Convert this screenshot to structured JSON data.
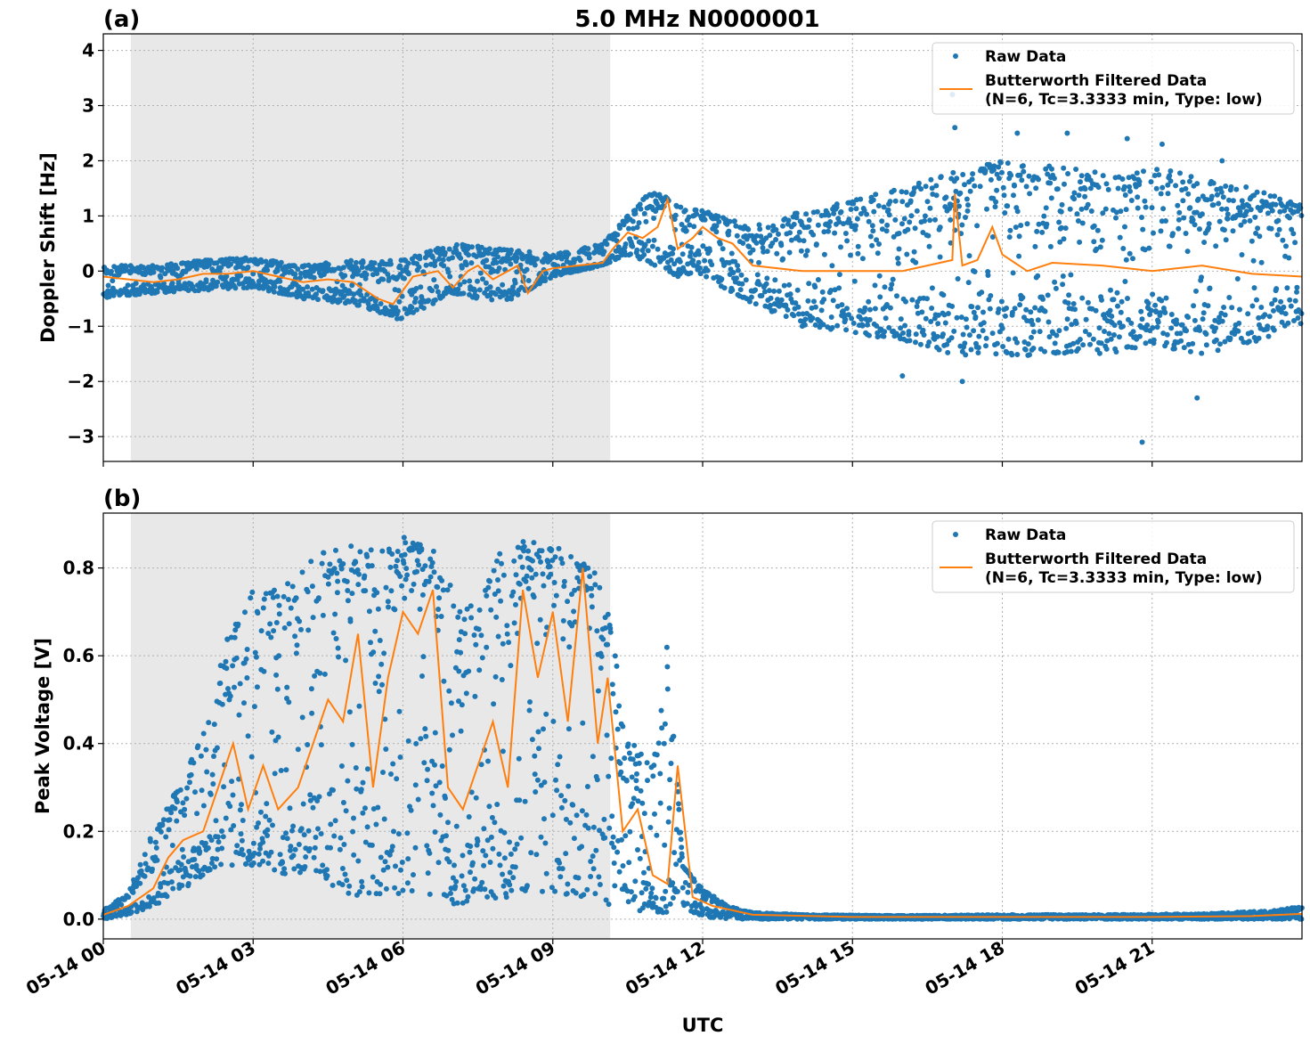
{
  "figure_title": "5.0 MHz N0000001",
  "xlabel": "UTC",
  "x_ticks": [
    "05-14 00",
    "05-14 03",
    "05-14 06",
    "05-14 09",
    "05-14 12",
    "05-14 15",
    "05-14 18",
    "05-14 21"
  ],
  "legend": {
    "raw_label": "Raw Data",
    "filtered_label_line1": "Butterworth Filtered Data",
    "filtered_label_line2": "(N=6, Tc=3.3333 min, Type: low)"
  },
  "colors": {
    "raw": "#1f77b4",
    "filtered": "#ff7f0e",
    "shade": "#e8e8e8",
    "grid": "#b0b0b0"
  },
  "chart_data": [
    {
      "type": "scatter",
      "panel_label": "(a)",
      "ylabel": "Doppler Shift [Hz]",
      "y_ticks": [
        "4",
        "3",
        "2",
        "1",
        "0",
        "−1",
        "−2",
        "−3"
      ],
      "y_tick_values": [
        4,
        3,
        2,
        1,
        0,
        -1,
        -2,
        -3
      ],
      "xlim_hours": [
        0,
        24
      ],
      "ylim": [
        -3.45,
        4.3
      ],
      "shaded_span_hours": [
        0.55,
        10.15
      ],
      "grid": true,
      "legend_position": "upper right",
      "series": [
        {
          "name": "Raw Data",
          "kind": "points",
          "envelope_hours": [
            0,
            1,
            2,
            3,
            4,
            5,
            6,
            7,
            8,
            9,
            10,
            10.5,
            11,
            11.5,
            12,
            13,
            14,
            15,
            16,
            17,
            18,
            19,
            20,
            21,
            22,
            23,
            24
          ],
          "envelope_low": [
            -0.5,
            -0.4,
            -0.35,
            -0.3,
            -0.5,
            -0.6,
            -0.9,
            -0.4,
            -0.6,
            -0.1,
            0.1,
            0.3,
            0.1,
            -0.1,
            -0.1,
            -0.6,
            -1.0,
            -1.1,
            -1.3,
            -1.5,
            -1.6,
            -1.5,
            -1.5,
            -1.4,
            -1.5,
            -1.3,
            -1.0
          ],
          "envelope_high": [
            0.1,
            0.1,
            0.2,
            0.25,
            0.1,
            0.2,
            0.2,
            0.5,
            0.4,
            0.3,
            0.5,
            1.0,
            1.5,
            1.2,
            1.1,
            0.8,
            1.1,
            1.3,
            1.5,
            1.8,
            2.0,
            1.9,
            1.8,
            1.9,
            1.7,
            1.5,
            1.2
          ],
          "outliers": [
            [
              17.0,
              3.2
            ],
            [
              17.05,
              2.6
            ],
            [
              18.3,
              2.5
            ],
            [
              19.3,
              2.5
            ],
            [
              20.5,
              2.4
            ],
            [
              21.2,
              2.3
            ],
            [
              22.4,
              2.0
            ],
            [
              20.8,
              -3.1
            ],
            [
              21.9,
              -2.3
            ],
            [
              16.0,
              -1.9
            ],
            [
              17.2,
              -2.0
            ]
          ]
        },
        {
          "name": "Butterworth Filtered Data (N=6, Tc=3.3333 min, Type: low)",
          "kind": "line",
          "x_hours": [
            0,
            0.5,
            1,
            1.5,
            2,
            2.5,
            3,
            3.5,
            4,
            4.5,
            5,
            5.5,
            5.8,
            6.2,
            6.7,
            7,
            7.3,
            7.5,
            7.8,
            8.3,
            8.5,
            8.8,
            9,
            9.5,
            10,
            10.2,
            10.5,
            10.8,
            11.1,
            11.3,
            11.5,
            11.8,
            12,
            12.3,
            12.6,
            13,
            14,
            15,
            16,
            16.5,
            17,
            17.05,
            17.2,
            17.5,
            17.8,
            18,
            18.5,
            19,
            20,
            21,
            22,
            23,
            24
          ],
          "y_values": [
            -0.1,
            -0.15,
            -0.2,
            -0.15,
            -0.05,
            -0.05,
            0.0,
            -0.1,
            -0.2,
            -0.15,
            -0.2,
            -0.5,
            -0.6,
            -0.1,
            0.0,
            -0.3,
            0.0,
            0.1,
            -0.15,
            0.1,
            -0.4,
            0.0,
            0.05,
            0.1,
            0.15,
            0.4,
            0.7,
            0.6,
            0.8,
            1.3,
            0.4,
            0.6,
            0.8,
            0.6,
            0.5,
            0.1,
            0.0,
            0.0,
            0.0,
            0.1,
            0.2,
            1.4,
            0.1,
            0.2,
            0.8,
            0.3,
            0.0,
            0.15,
            0.1,
            0.0,
            0.1,
            -0.05,
            -0.1
          ]
        }
      ]
    },
    {
      "type": "scatter",
      "panel_label": "(b)",
      "ylabel": "Peak Voltage [V]",
      "y_ticks": [
        "0.8",
        "0.6",
        "0.4",
        "0.2",
        "0.0"
      ],
      "y_tick_values": [
        0.8,
        0.6,
        0.4,
        0.2,
        0.0
      ],
      "xlim_hours": [
        0,
        24
      ],
      "ylim": [
        -0.045,
        0.925
      ],
      "shaded_span_hours": [
        0.55,
        10.15
      ],
      "grid": true,
      "legend_position": "upper right",
      "series": [
        {
          "name": "Raw Data",
          "kind": "points",
          "envelope_hours": [
            0,
            0.5,
            1,
            1.5,
            2,
            2.5,
            3,
            3.5,
            4,
            4.5,
            5,
            5.5,
            6,
            6.5,
            7,
            7.5,
            8,
            8.5,
            9,
            9.5,
            10,
            10.5,
            11,
            11.3,
            11.6,
            12,
            12.5,
            13,
            14,
            16,
            18,
            20,
            22,
            23.5,
            24
          ],
          "envelope_low": [
            0.0,
            0.01,
            0.03,
            0.06,
            0.1,
            0.12,
            0.12,
            0.1,
            0.1,
            0.08,
            0.05,
            0.05,
            0.06,
            0.05,
            0.03,
            0.04,
            0.05,
            0.05,
            0.05,
            0.05,
            0.03,
            0.02,
            0.01,
            0.01,
            0.01,
            0.005,
            0.0,
            0.0,
            0.0,
            0.0,
            0.0,
            0.0,
            0.0,
            0.0,
            0.0
          ],
          "envelope_high": [
            0.02,
            0.06,
            0.2,
            0.3,
            0.45,
            0.65,
            0.75,
            0.75,
            0.8,
            0.85,
            0.86,
            0.86,
            0.87,
            0.87,
            0.75,
            0.72,
            0.85,
            0.87,
            0.86,
            0.82,
            0.78,
            0.43,
            0.35,
            0.64,
            0.12,
            0.07,
            0.03,
            0.015,
            0.01,
            0.008,
            0.01,
            0.01,
            0.012,
            0.02,
            0.03
          ]
        },
        {
          "name": "Butterworth Filtered Data (N=6, Tc=3.3333 min, Type: low)",
          "kind": "line",
          "x_hours": [
            0,
            0.5,
            1,
            1.3,
            1.6,
            2,
            2.3,
            2.6,
            2.9,
            3.2,
            3.5,
            3.9,
            4.2,
            4.5,
            4.8,
            5.1,
            5.4,
            5.7,
            6.0,
            6.3,
            6.6,
            6.9,
            7.2,
            7.5,
            7.8,
            8.1,
            8.4,
            8.7,
            9.0,
            9.3,
            9.6,
            9.9,
            10.1,
            10.4,
            10.7,
            11.0,
            11.3,
            11.5,
            11.8,
            12.2,
            13,
            15,
            18,
            21,
            23,
            24
          ],
          "y_values": [
            0.01,
            0.03,
            0.07,
            0.14,
            0.18,
            0.2,
            0.3,
            0.4,
            0.25,
            0.35,
            0.25,
            0.3,
            0.4,
            0.5,
            0.45,
            0.65,
            0.3,
            0.55,
            0.7,
            0.65,
            0.75,
            0.3,
            0.25,
            0.35,
            0.45,
            0.3,
            0.75,
            0.55,
            0.7,
            0.45,
            0.8,
            0.4,
            0.55,
            0.2,
            0.25,
            0.1,
            0.08,
            0.35,
            0.05,
            0.03,
            0.01,
            0.005,
            0.005,
            0.005,
            0.007,
            0.012
          ]
        }
      ]
    }
  ]
}
